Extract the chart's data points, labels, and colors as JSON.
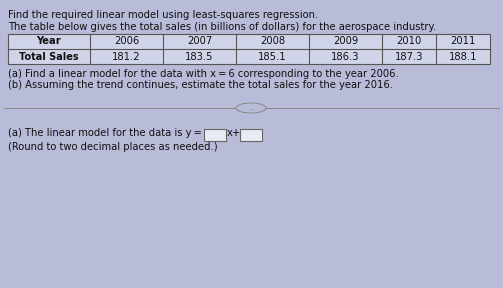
{
  "title1": "Find the required linear model using least-squares regression.",
  "title2": "The table below gives the total sales (in billions of dollars) for the aerospace industry.",
  "table_headers": [
    "Year",
    "2006",
    "2007",
    "2008",
    "2009",
    "2010",
    "2011"
  ],
  "table_row_label": "Total Sales",
  "table_values": [
    "181.2",
    "183.5",
    "185.1",
    "186.3",
    "187.3",
    "188.1"
  ],
  "instruction_a": "(a) Find a linear model for the data with x = 6 corresponding to the year 2006.",
  "instruction_b": "(b) Assuming the trend continues, estimate the total sales for the year 2016.",
  "answer_line1_pre": "(a) The linear model for the data is y =",
  "answer_suffix": "x+",
  "answer_note": "(Round to two decimal places as needed.)",
  "bg_color": "#b8bcd8",
  "cell_bg": "#d0d4e8",
  "text_color": "#111111",
  "box_color": "#e8eaf4",
  "separator_color": "#888888",
  "font_size": 7.2
}
